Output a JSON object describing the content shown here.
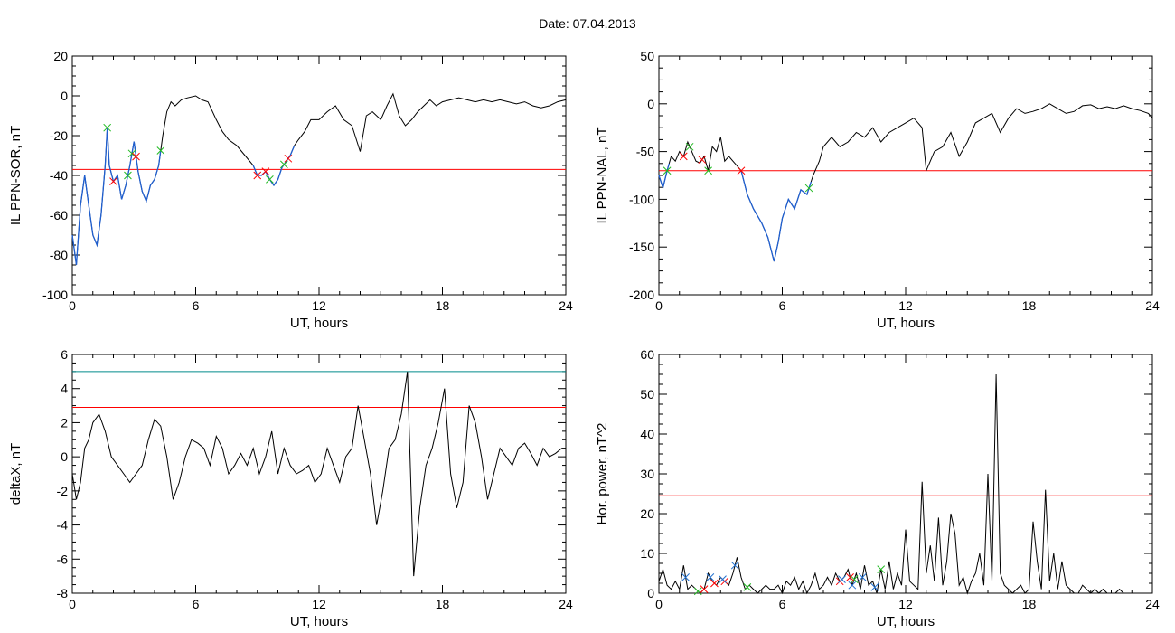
{
  "header": {
    "date_label": "Date:",
    "date_value": "07.04.2013"
  },
  "colors": {
    "data_line": "#000000",
    "threshold": "#ff0000",
    "upper_threshold": "#008b8b",
    "marked_segment": "#1f5fd0",
    "marker_green": "#22bb22",
    "marker_red": "#ff0000",
    "marker_blue": "#2070d0"
  },
  "chart_data": [
    {
      "id": "sor",
      "type": "line",
      "title": "",
      "xlabel": "UT, hours",
      "ylabel": "IL PPN-SOR, nT",
      "xlim": [
        0,
        24
      ],
      "ylim": [
        -100,
        20
      ],
      "xticks": [
        "0",
        "6",
        "12",
        "18",
        "24"
      ],
      "yticks": [
        "20",
        "0",
        "-20",
        "-40",
        "-60",
        "-80",
        "-100"
      ],
      "threshold": -37,
      "series": [
        {
          "x": [
            0,
            0.2,
            0.4,
            0.6,
            0.8,
            1.0,
            1.2,
            1.4,
            1.6,
            1.7,
            1.8,
            2.0,
            2.2,
            2.4,
            2.6,
            2.8,
            3.0,
            3.2,
            3.4,
            3.6,
            3.8,
            4.0,
            4.2,
            4.4,
            4.6,
            4.8,
            5.0,
            5.3,
            5.6,
            6.0,
            6.3,
            6.6,
            7.0,
            7.3,
            7.6,
            8.0,
            8.4,
            8.8,
            9.0,
            9.2,
            9.4,
            9.6,
            9.8,
            10.0,
            10.2,
            10.4,
            10.6,
            10.8,
            11.0,
            11.3,
            11.6,
            12.0,
            12.4,
            12.8,
            13.2,
            13.6,
            14.0,
            14.3,
            14.6,
            15.0,
            15.3,
            15.6,
            15.9,
            16.2,
            16.5,
            16.8,
            17.1,
            17.4,
            17.7,
            18.0,
            18.4,
            18.8,
            19.2,
            19.6,
            20.0,
            20.4,
            20.8,
            21.2,
            21.6,
            22.0,
            22.4,
            22.8,
            23.2,
            23.6,
            24.0
          ],
          "y": [
            -70,
            -85,
            -55,
            -40,
            -55,
            -70,
            -75,
            -60,
            -35,
            -16,
            -35,
            -43,
            -40,
            -52,
            -45,
            -35,
            -23,
            -38,
            -48,
            -53,
            -45,
            -42,
            -35,
            -20,
            -8,
            -3,
            -5,
            -2,
            -1,
            0,
            -2,
            -3,
            -12,
            -18,
            -22,
            -25,
            -30,
            -35,
            -40,
            -40,
            -38,
            -42,
            -45,
            -42,
            -36,
            -33,
            -30,
            -25,
            -22,
            -18,
            -12,
            -12,
            -8,
            -5,
            -12,
            -15,
            -28,
            -10,
            -8,
            -12,
            -5,
            1,
            -10,
            -15,
            -12,
            -8,
            -5,
            -2,
            -5,
            -3,
            -2,
            -1,
            -2,
            -3,
            -2,
            -3,
            -2,
            -3,
            -4,
            -3,
            -5,
            -6,
            -5,
            -3,
            -2
          ]
        }
      ],
      "marked_segments": [
        {
          "x_from": 0,
          "x_to": 1.8
        },
        {
          "x_from": 1.8,
          "x_to": 4.3
        },
        {
          "x_from": 8.8,
          "x_to": 10.8
        }
      ],
      "markers_green": [
        1.7,
        2.7,
        2.9,
        4.3,
        9.6,
        10.3
      ],
      "markers_red": [
        2.0,
        3.1,
        9.0,
        9.4,
        10.5
      ]
    },
    {
      "id": "nal",
      "type": "line",
      "title": "",
      "xlabel": "UT, hours",
      "ylabel": "IL PPN-NAL, nT",
      "xlim": [
        0,
        24
      ],
      "ylim": [
        -200,
        50
      ],
      "xticks": [
        "0",
        "6",
        "12",
        "18",
        "24"
      ],
      "yticks": [
        "50",
        "0",
        "-50",
        "-100",
        "-150",
        "-200"
      ],
      "threshold": -70,
      "series": [
        {
          "x": [
            0,
            0.2,
            0.4,
            0.6,
            0.8,
            1.0,
            1.2,
            1.4,
            1.6,
            1.8,
            2.0,
            2.2,
            2.4,
            2.6,
            2.8,
            3.0,
            3.2,
            3.4,
            3.6,
            3.8,
            4.0,
            4.3,
            4.6,
            5.0,
            5.3,
            5.6,
            5.8,
            6.0,
            6.3,
            6.6,
            6.9,
            7.2,
            7.5,
            7.8,
            8.0,
            8.4,
            8.8,
            9.2,
            9.6,
            10.0,
            10.4,
            10.8,
            11.2,
            11.6,
            12.0,
            12.4,
            12.8,
            13.0,
            13.4,
            13.8,
            14.2,
            14.6,
            15.0,
            15.4,
            15.8,
            16.2,
            16.6,
            17.0,
            17.4,
            17.8,
            18.2,
            18.6,
            19.0,
            19.4,
            19.8,
            20.2,
            20.6,
            21.0,
            21.4,
            21.8,
            22.2,
            22.6,
            23.0,
            23.4,
            23.8,
            24.0
          ],
          "y": [
            -75,
            -88,
            -70,
            -55,
            -60,
            -50,
            -55,
            -40,
            -50,
            -60,
            -62,
            -55,
            -70,
            -45,
            -50,
            -35,
            -60,
            -55,
            -60,
            -65,
            -70,
            -95,
            -110,
            -125,
            -140,
            -165,
            -145,
            -120,
            -100,
            -110,
            -90,
            -95,
            -75,
            -60,
            -45,
            -35,
            -45,
            -40,
            -30,
            -35,
            -25,
            -40,
            -30,
            -25,
            -20,
            -15,
            -25,
            -70,
            -50,
            -45,
            -30,
            -55,
            -40,
            -20,
            -15,
            -10,
            -30,
            -15,
            -5,
            -10,
            -8,
            -5,
            0,
            -5,
            -10,
            -8,
            -2,
            -1,
            -5,
            -3,
            -5,
            -2,
            -5,
            -7,
            -10,
            -15
          ]
        }
      ],
      "marked_segments": [
        {
          "x_from": 0,
          "x_to": 0.5
        },
        {
          "x_from": 4.0,
          "x_to": 7.4
        }
      ],
      "markers_green": [
        0.4,
        1.5,
        2.4,
        7.3
      ],
      "markers_red": [
        1.2,
        2.1,
        4.0
      ]
    },
    {
      "id": "deltax",
      "type": "line",
      "title": "",
      "xlabel": "UT, hours",
      "ylabel": "deltaX, nT",
      "xlim": [
        0,
        24
      ],
      "ylim": [
        -8,
        6
      ],
      "xticks": [
        "0",
        "6",
        "12",
        "18",
        "24"
      ],
      "yticks": [
        "6",
        "4",
        "2",
        "0",
        "-2",
        "-4",
        "-6",
        "-8"
      ],
      "threshold": 2.9,
      "upper_threshold": 5,
      "series": [
        {
          "x": [
            0,
            0.2,
            0.4,
            0.6,
            0.8,
            1.0,
            1.3,
            1.6,
            1.9,
            2.2,
            2.5,
            2.8,
            3.1,
            3.4,
            3.7,
            4.0,
            4.3,
            4.6,
            4.9,
            5.2,
            5.5,
            5.8,
            6.1,
            6.4,
            6.7,
            7.0,
            7.3,
            7.6,
            7.9,
            8.2,
            8.5,
            8.8,
            9.1,
            9.4,
            9.7,
            10.0,
            10.3,
            10.6,
            10.9,
            11.2,
            11.5,
            11.8,
            12.1,
            12.4,
            12.7,
            13.0,
            13.3,
            13.6,
            13.9,
            14.2,
            14.5,
            14.8,
            15.1,
            15.4,
            15.7,
            16.0,
            16.3,
            16.6,
            16.9,
            17.2,
            17.5,
            17.8,
            18.1,
            18.4,
            18.7,
            19.0,
            19.3,
            19.6,
            19.9,
            20.2,
            20.5,
            20.8,
            21.1,
            21.4,
            21.7,
            22.0,
            22.3,
            22.6,
            22.9,
            23.2,
            23.5,
            23.8,
            24.0
          ],
          "y": [
            -1,
            -2.5,
            -1.5,
            0.5,
            1.0,
            2.0,
            2.5,
            1.5,
            0,
            -0.5,
            -1.0,
            -1.5,
            -1.0,
            -0.5,
            1.0,
            2.2,
            1.8,
            0,
            -2.5,
            -1.5,
            0,
            1.0,
            0.8,
            0.5,
            -0.5,
            1.2,
            0.5,
            -1.0,
            -0.5,
            0.2,
            -0.5,
            0.5,
            -1.0,
            0,
            1.5,
            -1.0,
            0.5,
            -0.5,
            -1.0,
            -0.8,
            -0.5,
            -1.5,
            -1.0,
            0.5,
            -0.5,
            -1.5,
            0,
            0.5,
            3.0,
            1.0,
            -1.0,
            -4.0,
            -2.0,
            0.5,
            1.0,
            2.5,
            5.0,
            -7.0,
            -3.0,
            -0.5,
            0.5,
            2.0,
            4.0,
            -1.0,
            -3.0,
            -1.5,
            3.0,
            2.0,
            0,
            -2.5,
            -1.0,
            0.5,
            0,
            -0.5,
            0.5,
            0.8,
            0.2,
            -0.5,
            0.5,
            0,
            0.2,
            0.5,
            0.5
          ]
        }
      ]
    },
    {
      "id": "hpower",
      "type": "line",
      "title": "",
      "xlabel": "UT, hours",
      "ylabel": "Hor. power, nT^2",
      "xlim": [
        0,
        24
      ],
      "ylim": [
        0,
        60
      ],
      "xticks": [
        "0",
        "6",
        "12",
        "18",
        "24"
      ],
      "yticks": [
        "60",
        "50",
        "40",
        "30",
        "20",
        "10",
        "0"
      ],
      "threshold": 24.5,
      "series": [
        {
          "x": [
            0,
            0.2,
            0.4,
            0.6,
            0.8,
            1.0,
            1.2,
            1.4,
            1.6,
            1.8,
            2.0,
            2.2,
            2.4,
            2.6,
            2.8,
            3.0,
            3.2,
            3.4,
            3.6,
            3.8,
            4.0,
            4.2,
            4.4,
            4.6,
            4.8,
            5.0,
            5.2,
            5.4,
            5.6,
            5.8,
            6.0,
            6.2,
            6.4,
            6.6,
            6.8,
            7.0,
            7.2,
            7.4,
            7.6,
            7.8,
            8.0,
            8.2,
            8.4,
            8.6,
            8.8,
            9.0,
            9.2,
            9.4,
            9.6,
            9.8,
            10.0,
            10.2,
            10.4,
            10.6,
            10.8,
            11.0,
            11.2,
            11.4,
            11.6,
            11.8,
            12.0,
            12.2,
            12.4,
            12.6,
            12.8,
            13.0,
            13.2,
            13.4,
            13.6,
            13.8,
            14.0,
            14.2,
            14.4,
            14.6,
            14.8,
            15.0,
            15.2,
            15.4,
            15.6,
            15.8,
            16.0,
            16.2,
            16.4,
            16.6,
            16.8,
            17.0,
            17.2,
            17.4,
            17.6,
            17.8,
            18.0,
            18.2,
            18.4,
            18.6,
            18.8,
            19.0,
            19.2,
            19.4,
            19.6,
            19.8,
            20.0,
            20.2,
            20.4,
            20.6,
            20.8,
            21.0,
            21.2,
            21.4,
            21.6,
            21.8,
            22.0,
            22.2,
            22.4,
            22.6,
            22.8,
            23.0,
            23.2,
            23.4,
            23.6,
            23.8,
            24.0
          ],
          "y": [
            3,
            6,
            2,
            1,
            3,
            1,
            7,
            1,
            2,
            1,
            0,
            1,
            5,
            3,
            2,
            4,
            3,
            2,
            5,
            9,
            4,
            1,
            2,
            1,
            0,
            1,
            2,
            1,
            1,
            2,
            0,
            3,
            2,
            4,
            1,
            3,
            0,
            2,
            5,
            1,
            2,
            4,
            2,
            5,
            3,
            4,
            6,
            2,
            5,
            1,
            7,
            2,
            3,
            0,
            6,
            1,
            8,
            1,
            5,
            2,
            16,
            3,
            2,
            1,
            28,
            5,
            12,
            3,
            19,
            2,
            8,
            20,
            15,
            2,
            4,
            0,
            3,
            5,
            10,
            2,
            30,
            3,
            55,
            5,
            2,
            1,
            0,
            1,
            2,
            0,
            1,
            18,
            8,
            1,
            26,
            3,
            10,
            1,
            8,
            2,
            1,
            0,
            0,
            2,
            1,
            0,
            1,
            0,
            1,
            0,
            0,
            0,
            1,
            0,
            0,
            0,
            0,
            0,
            0,
            0,
            0
          ]
        }
      ],
      "markers_blue": [
        1.3,
        2.5,
        3.1,
        3.7,
        8.9,
        9.4,
        9.9,
        10.5
      ],
      "markers_red": [
        2.2,
        2.7,
        3.2,
        8.8,
        9.3
      ],
      "markers_green": [
        1.9,
        4.3,
        9.5,
        10.8
      ]
    }
  ]
}
